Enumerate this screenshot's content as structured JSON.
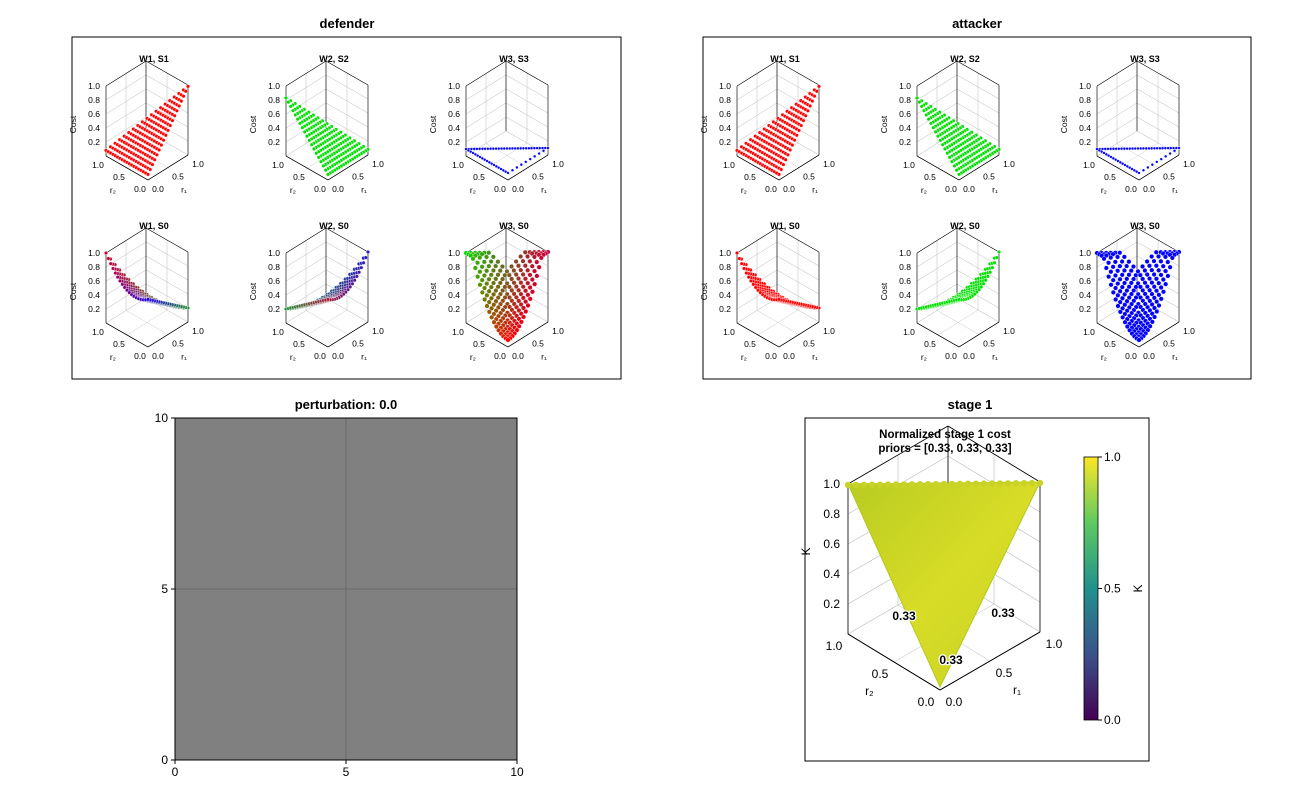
{
  "panels": {
    "defender_title": "defender",
    "attacker_title": "attacker",
    "perturbation_title": "perturbation: 0.0",
    "stage_title": "stage 1"
  },
  "subplot_titles": [
    "W1, S1",
    "W2, S2",
    "W3, S3",
    "W1, S0",
    "W2, S0",
    "W3, S0"
  ],
  "axis_text": {
    "cost_label": "Cost",
    "r1_label": "r₁",
    "r2_label": "r₂",
    "cost_ticks": [
      "1.0",
      "0.8",
      "0.6",
      "0.4",
      "0.2"
    ],
    "r_ticks": [
      "1.0",
      "0.5",
      "0.0"
    ],
    "k_label": "K"
  },
  "stage": {
    "title_line1": "Normalized stage 1 cost",
    "title_line2": "priors = [0.33, 0.33, 0.33]",
    "annotations": [
      "0.33",
      "0.33",
      "0.33"
    ],
    "colorbar_ticks": [
      "1.0",
      "0.5",
      "0.0"
    ]
  },
  "colors": {
    "W1": "#ff0000",
    "W2": "#00dd00",
    "W3": "#0000ff",
    "perturbation_fill": "#808080",
    "viridis_top": "#fde725",
    "viridis_mid": "#21918c",
    "viridis_bottom": "#440154",
    "stage_surface": "#c8d42a"
  },
  "chart_data": [
    {
      "type": "scatter3d",
      "panel": "defender",
      "subplots": [
        {
          "title": "W1, S1",
          "surface": "plane",
          "color": "red",
          "z_at_r1_0_r2_0": 0.0,
          "z_at_r1_1_r2_0": 1.0,
          "z_at_r1_0_r2_1": 0.2
        },
        {
          "title": "W2, S2",
          "surface": "plane",
          "color": "green",
          "z_at_r1_0_r2_0": 0.0,
          "z_at_r1_1_r2_0": 0.2,
          "z_at_r1_0_r2_1": 0.8
        },
        {
          "title": "W3, S3",
          "surface": "flat",
          "color": "blue",
          "z": 0.1
        },
        {
          "title": "W1, S0",
          "surface": "saddle",
          "color": "mixed"
        },
        {
          "title": "W2, S0",
          "surface": "saddle",
          "color": "mixed"
        },
        {
          "title": "W3, S0",
          "surface": "valley",
          "color": "mixed"
        }
      ],
      "zlabel": "Cost",
      "zlim": [
        0,
        1
      ],
      "xlim": [
        0,
        1
      ],
      "ylim": [
        0,
        1
      ]
    },
    {
      "type": "scatter3d",
      "panel": "attacker",
      "subplots": [
        {
          "title": "W1, S1",
          "surface": "plane",
          "color": "red"
        },
        {
          "title": "W2, S2",
          "surface": "plane",
          "color": "green"
        },
        {
          "title": "W3, S3",
          "surface": "flat",
          "color": "blue",
          "z": 0.1
        },
        {
          "title": "W1, S0",
          "surface": "saddle",
          "color": "red"
        },
        {
          "title": "W2, S0",
          "surface": "saddle",
          "color": "green"
        },
        {
          "title": "W3, S0",
          "surface": "valley",
          "color": "blue"
        }
      ],
      "zlabel": "Cost",
      "zlim": [
        0,
        1
      ],
      "xlim": [
        0,
        1
      ],
      "ylim": [
        0,
        1
      ]
    },
    {
      "type": "heatmap",
      "title": "perturbation: 0.0",
      "xlim": [
        0,
        10
      ],
      "ylim": [
        0,
        10
      ],
      "xticks": [
        0,
        5,
        10
      ],
      "yticks": [
        0,
        5,
        10
      ],
      "grid": true,
      "value": 0.0
    },
    {
      "type": "surface3d",
      "title": "stage 1",
      "subtitle": "Normalized stage 1 cost",
      "priors": [
        0.33,
        0.33,
        0.33
      ],
      "zlabel": "K",
      "zlim": [
        0,
        1
      ],
      "z_value": 1.0,
      "colorbar": {
        "label": "K",
        "range": [
          0,
          1
        ],
        "ticks": [
          0.0,
          0.5,
          1.0
        ],
        "colormap": "viridis"
      }
    }
  ]
}
